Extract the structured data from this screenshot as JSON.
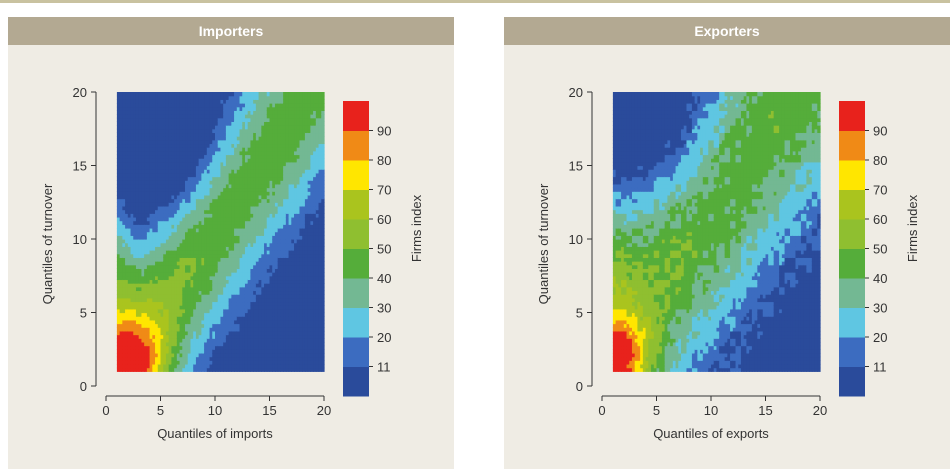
{
  "chart_data": [
    {
      "type": "heatmap",
      "panel_title": "Importers",
      "xlabel": "Quantiles of imports",
      "ylabel": "Quantiles of turnover",
      "xlim": [
        0,
        20
      ],
      "ylim": [
        0,
        20
      ],
      "x_ticks": [
        "0",
        "5",
        "10",
        "15",
        "20"
      ],
      "y_ticks": [
        "0",
        "5",
        "10",
        "15",
        "20"
      ],
      "colorbar_label": "Firms index",
      "colorbar_ticks": [
        "11",
        "20",
        "30",
        "40",
        "50",
        "60",
        "70",
        "80",
        "90"
      ],
      "levels": [
        0,
        11,
        20,
        30,
        40,
        50,
        60,
        70,
        80,
        90,
        100
      ],
      "colors": [
        "#2a4b9b",
        "#3c6cc0",
        "#5fc6e2",
        "#73b893",
        "#55ad3a",
        "#8fbf30",
        "#aac41e",
        "#ffe600",
        "#f08a16",
        "#e8221c"
      ],
      "field": {
        "kind": "diagonal",
        "peak": [
          2.6,
          1.3
        ],
        "ridge_slope": 1.03,
        "ridge_offset": 0.6,
        "ridge_width": 3.4,
        "base_peak": 60,
        "base_far": 44,
        "hot_amplitude": 52,
        "hot_radius": 2.3,
        "valley_amplitude": 18,
        "valley_center": [
          6,
          15
        ],
        "valley_radius": 4,
        "left_edge_bump": 22,
        "noise": 3
      },
      "x_range": [
        1,
        20
      ],
      "y_range": [
        1,
        20
      ]
    },
    {
      "type": "heatmap",
      "panel_title": "Exporters",
      "xlabel": "Quantiles of exports",
      "ylabel": "Quantiles of turnover",
      "xlim": [
        0,
        20
      ],
      "ylim": [
        0,
        20
      ],
      "x_ticks": [
        "0",
        "5",
        "10",
        "15",
        "20"
      ],
      "y_ticks": [
        "0",
        "5",
        "10",
        "15",
        "20"
      ],
      "colorbar_label": "Firms index",
      "colorbar_ticks": [
        "11",
        "20",
        "30",
        "40",
        "50",
        "60",
        "70",
        "80",
        "90"
      ],
      "levels": [
        0,
        11,
        20,
        30,
        40,
        50,
        60,
        70,
        80,
        90,
        100
      ],
      "colors": [
        "#2a4b9b",
        "#3c6cc0",
        "#5fc6e2",
        "#73b893",
        "#55ad3a",
        "#8fbf30",
        "#aac41e",
        "#ffe600",
        "#f08a16",
        "#e8221c"
      ],
      "field": {
        "kind": "diagonal",
        "peak": [
          1.8,
          2.0
        ],
        "ridge_slope": 0.95,
        "ridge_offset": 3.2,
        "ridge_width": 5.0,
        "base_peak": 58,
        "base_far": 45,
        "hot_amplitude": 48,
        "hot_radius": 1.9,
        "valley_amplitude": 22,
        "valley_center": [
          5,
          17
        ],
        "valley_radius": 4.5,
        "left_edge_bump": 10,
        "noise": 5
      },
      "x_range": [
        1,
        20
      ],
      "y_range": [
        1,
        20
      ]
    }
  ]
}
